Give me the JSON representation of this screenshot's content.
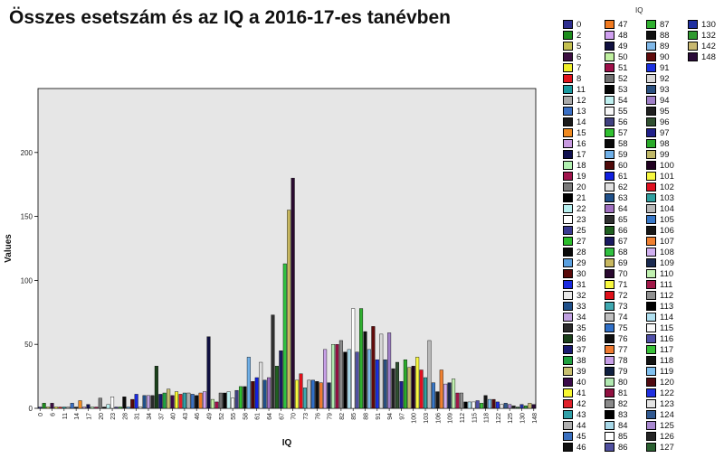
{
  "title": "Összes esetszám és az IQ a 2016-17-es tanévben",
  "chart_data": {
    "type": "bar",
    "xlabel": "IQ",
    "ylabel": "Values",
    "ylim": [
      0,
      250
    ],
    "yticks": [
      0,
      50,
      100,
      150,
      200
    ],
    "grid": false,
    "background": "#e6e6e6",
    "legend_title": "IQ",
    "legend_position": "right",
    "categories": [
      "0",
      "2",
      "5",
      "6",
      "7",
      "8",
      "11",
      "12",
      "13",
      "14",
      "15",
      "16",
      "17",
      "18",
      "19",
      "20",
      "21",
      "22",
      "23",
      "25",
      "27",
      "28",
      "29",
      "30",
      "31",
      "32",
      "33",
      "34",
      "35",
      "36",
      "37",
      "38",
      "39",
      "40",
      "41",
      "42",
      "43",
      "44",
      "45",
      "46",
      "47",
      "48",
      "49",
      "50",
      "51",
      "52",
      "53",
      "54",
      "55",
      "56",
      "57",
      "58",
      "59",
      "60",
      "61",
      "62",
      "63",
      "64",
      "65",
      "66",
      "67",
      "68",
      "69",
      "70",
      "71",
      "72",
      "73",
      "74",
      "75",
      "76",
      "77",
      "78",
      "79",
      "80",
      "81",
      "82",
      "83",
      "84",
      "85",
      "86",
      "87",
      "88",
      "89",
      "90",
      "91",
      "92",
      "93",
      "94",
      "95",
      "96",
      "97",
      "98",
      "99",
      "100",
      "101",
      "102",
      "103",
      "104",
      "105",
      "106",
      "107",
      "108",
      "109",
      "110",
      "111",
      "112",
      "113",
      "114",
      "115",
      "116",
      "117",
      "118",
      "119",
      "120",
      "122",
      "123",
      "124",
      "125",
      "126",
      "127",
      "130",
      "132",
      "142",
      "148"
    ],
    "tick_labels": [
      "0",
      "6",
      "11",
      "14",
      "17",
      "20",
      "23",
      "28",
      "31",
      "34",
      "37",
      "40",
      "43",
      "46",
      "49",
      "52",
      "55",
      "58",
      "61",
      "64",
      "67",
      "70",
      "73",
      "76",
      "79",
      "82",
      "85",
      "88",
      "91",
      "94",
      "97",
      "100",
      "103",
      "106",
      "109",
      "112",
      "115",
      "118",
      "122",
      "125",
      "130",
      "148"
    ],
    "values": [
      1,
      4,
      1,
      4,
      1,
      1,
      1,
      1,
      4,
      1,
      6,
      1,
      3,
      1,
      1,
      8,
      1,
      3,
      9,
      1,
      1,
      9,
      1,
      7,
      11,
      1,
      10,
      10,
      10,
      33,
      11,
      12,
      15,
      10,
      13,
      11,
      12,
      12,
      11,
      10,
      12,
      13,
      56,
      7,
      5,
      12,
      12,
      13,
      8,
      14,
      17,
      17,
      40,
      21,
      24,
      36,
      22,
      24,
      73,
      33,
      45,
      113,
      155,
      180,
      22,
      27,
      16,
      22,
      22,
      21,
      20,
      46,
      20,
      50,
      50,
      53,
      44,
      46,
      78,
      44,
      78,
      60,
      46,
      64,
      38,
      58,
      38,
      59,
      31,
      36,
      21,
      38,
      32,
      33,
      40,
      30,
      24,
      53,
      20,
      13,
      30,
      19,
      20,
      23,
      12,
      12,
      5,
      5,
      5,
      6,
      4,
      10,
      7,
      7,
      5,
      3,
      4,
      3,
      2,
      1,
      3,
      2,
      4,
      3
    ],
    "colors": [
      "#2e2e8f",
      "#1d8d1d",
      "#c4c050",
      "#3c0f42",
      "#f0f02a",
      "#e0141c",
      "#1a9aa0",
      "#a9a9a9",
      "#3a6fc4",
      "#1a1a1a",
      "#f08a20",
      "#c89ae0",
      "#101050",
      "#b0f0b0",
      "#a0144c",
      "#7a7a7a",
      "#000000",
      "#b8f0f0",
      "#ffffff",
      "#3a3a90",
      "#2bbd2b",
      "#0a0a0a",
      "#5aa0e0",
      "#5a0a0a",
      "#1a2ae0",
      "#e8e8e8",
      "#20508a",
      "#c0a0e0",
      "#2a2a2a",
      "#1a401a",
      "#1a1a70",
      "#20a040",
      "#c8c070",
      "#3a0a4a",
      "#f8f830",
      "#e0202a",
      "#30a0a8",
      "#b0b0b0",
      "#3a70c0",
      "#101010",
      "#f07a20",
      "#d0a0f0",
      "#101040",
      "#c0f0a0",
      "#a0104a",
      "#707070",
      "#050505",
      "#c0f0f0",
      "#f8f8f8",
      "#404080",
      "#30c030",
      "#0a0a0a",
      "#70b0e8",
      "#500a0a",
      "#1020e0",
      "#e0e0e0",
      "#20508a",
      "#a070c0",
      "#303030",
      "#206020",
      "#1a1a60",
      "#30c040",
      "#c8b860",
      "#2a0a30",
      "#f8f840",
      "#e0101a",
      "#40a8b0",
      "#c0c0c0",
      "#3070c8",
      "#101010",
      "#f07a30",
      "#c8a0e8",
      "#102040",
      "#b0e8b0",
      "#901040",
      "#8a8a8a",
      "#000000",
      "#a8d8e8",
      "#ffffff",
      "#5050a0",
      "#30b030",
      "#101010",
      "#80b8e8",
      "#600a0a",
      "#1a30e0",
      "#d8d8d8",
      "#2a5080",
      "#a080c8",
      "#202020",
      "#305030",
      "#20208a",
      "#2aaa2a",
      "#c0b868",
      "#200020",
      "#f8f840",
      "#e01020",
      "#30a0a0",
      "#b8b8b8",
      "#3878c8",
      "#181818",
      "#f08030",
      "#d0b0f0",
      "#1a2a50",
      "#c0f0b0",
      "#a01848",
      "#909090",
      "#000000",
      "#b0e0f0",
      "#fafafa",
      "#5050a8",
      "#38c038",
      "#141414",
      "#80c0f0",
      "#500a10",
      "#2030e0",
      "#e4e4e4",
      "#305890",
      "#a888d0",
      "#242424",
      "#2a6030",
      "#2030a0",
      "#309a30",
      "#c8b870",
      "#2a0a38"
    ]
  }
}
